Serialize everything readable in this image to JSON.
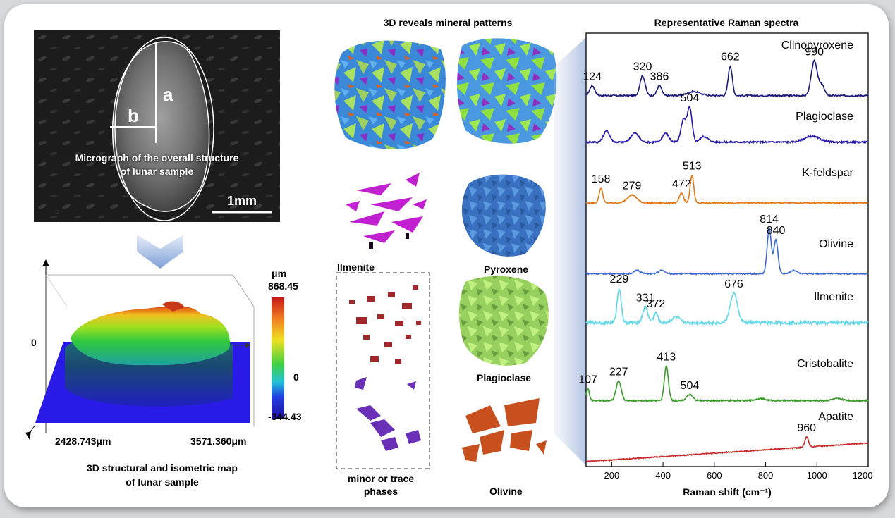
{
  "micrograph": {
    "caption_line1": "Micrograph of the overall structure",
    "caption_line2": "of lunar sample",
    "label_a": "a",
    "label_b": "b",
    "scale_bar": "1mm"
  },
  "map3d": {
    "caption_line1": "3D structural and isometric map",
    "caption_line2": "of lunar sample",
    "dim_x": "2428.743μm",
    "dim_y": "3571.360μm",
    "zero_label": "0",
    "colorbar": {
      "unit": "μm",
      "max": "868.45",
      "zero": "0",
      "min": "-344.43"
    }
  },
  "minerals": {
    "title": "3D reveals mineral patterns",
    "labels": {
      "ilmenite": "Ilmenite",
      "pyroxene": "Pyroxene",
      "plagioclase": "Plagioclase",
      "olivine": "Olivine",
      "minor_line1": "minor or trace",
      "minor_line2": "phases"
    },
    "colors": {
      "ilmenite": "#c020d0",
      "pyroxene": "#3a78c8",
      "plagioclase": "#9ed060",
      "olivine": "#c8501e",
      "trace_red": "#a0282a",
      "trace_purple": "#6a30b8"
    }
  },
  "chart_data": {
    "type": "line",
    "title": "Representative Raman spectra",
    "xlabel": "Raman shift (cm⁻¹)",
    "xlim": [
      100,
      1200
    ],
    "xticks": [
      200,
      400,
      600,
      800,
      1000,
      1200
    ],
    "grid": false,
    "series": [
      {
        "name": "Clinopyroxene",
        "color": "#1a1a7a",
        "baseline": 0.1,
        "noise": 0.15,
        "peaks": [
          [
            124,
            1.0,
            10
          ],
          [
            320,
            2.0,
            10
          ],
          [
            386,
            1.0,
            9
          ],
          [
            520,
            0.4,
            25
          ],
          [
            662,
            3.0,
            8
          ],
          [
            990,
            3.5,
            12
          ],
          [
            1020,
            1.0,
            10
          ]
        ],
        "peak_labels": [
          [
            124,
            "124"
          ],
          [
            320,
            "320"
          ],
          [
            386,
            "386"
          ],
          [
            662,
            "662"
          ],
          [
            990,
            "990"
          ]
        ]
      },
      {
        "name": "Plagioclase",
        "color": "#2a1ab0",
        "baseline": 0.4,
        "noise": 0.15,
        "peaks": [
          [
            180,
            1.0,
            12
          ],
          [
            290,
            0.8,
            15
          ],
          [
            410,
            0.8,
            12
          ],
          [
            480,
            2.0,
            10
          ],
          [
            504,
            3.0,
            9
          ],
          [
            560,
            0.5,
            15
          ],
          [
            980,
            0.5,
            30
          ]
        ],
        "peak_labels": [
          [
            504,
            "504"
          ]
        ]
      },
      {
        "name": "K-feldspar",
        "color": "#e07818",
        "baseline": 0.15,
        "noise": 0.12,
        "peaks": [
          [
            158,
            1.5,
            7
          ],
          [
            279,
            0.8,
            18
          ],
          [
            472,
            1.0,
            8
          ],
          [
            513,
            2.8,
            7
          ]
        ],
        "peak_labels": [
          [
            158,
            "158"
          ],
          [
            279,
            "279"
          ],
          [
            472,
            "472"
          ],
          [
            513,
            "513"
          ]
        ]
      },
      {
        "name": "Olivine",
        "color": "#3a6ad0",
        "baseline": 0.1,
        "noise": 0.1,
        "peaks": [
          [
            300,
            0.3,
            12
          ],
          [
            395,
            0.3,
            12
          ],
          [
            814,
            4.0,
            8
          ],
          [
            840,
            3.0,
            8
          ],
          [
            910,
            0.3,
            12
          ]
        ],
        "peak_labels": [
          [
            814,
            "814"
          ],
          [
            840,
            "840"
          ]
        ]
      },
      {
        "name": "Ilmenite",
        "color": "#60d8e8",
        "baseline": 0.5,
        "noise": 0.3,
        "peaks": [
          [
            229,
            3.5,
            8
          ],
          [
            331,
            1.6,
            10
          ],
          [
            372,
            1.0,
            8
          ],
          [
            450,
            0.6,
            15
          ],
          [
            676,
            3.0,
            14
          ]
        ],
        "peak_labels": [
          [
            229,
            "229"
          ],
          [
            331,
            "331"
          ],
          [
            372,
            "372"
          ],
          [
            676,
            "676"
          ]
        ]
      },
      {
        "name": "Cristobalite",
        "color": "#3a9a2a",
        "baseline": 0.25,
        "noise": 0.15,
        "peaks": [
          [
            107,
            1.2,
            6
          ],
          [
            227,
            2.0,
            10
          ],
          [
            413,
            3.5,
            8
          ],
          [
            504,
            0.6,
            12
          ],
          [
            780,
            0.2,
            20
          ],
          [
            1080,
            0.2,
            20
          ]
        ],
        "peak_labels": [
          [
            107,
            "107"
          ],
          [
            227,
            "227"
          ],
          [
            413,
            "413"
          ],
          [
            504,
            "504"
          ]
        ]
      },
      {
        "name": "Apatite",
        "color": "#c82828",
        "baseline": 0.0,
        "noise": 0.12,
        "slope": 2.2,
        "peaks": [
          [
            960,
            1.2,
            7
          ]
        ],
        "peak_labels": [
          [
            960,
            "960"
          ]
        ]
      }
    ]
  }
}
